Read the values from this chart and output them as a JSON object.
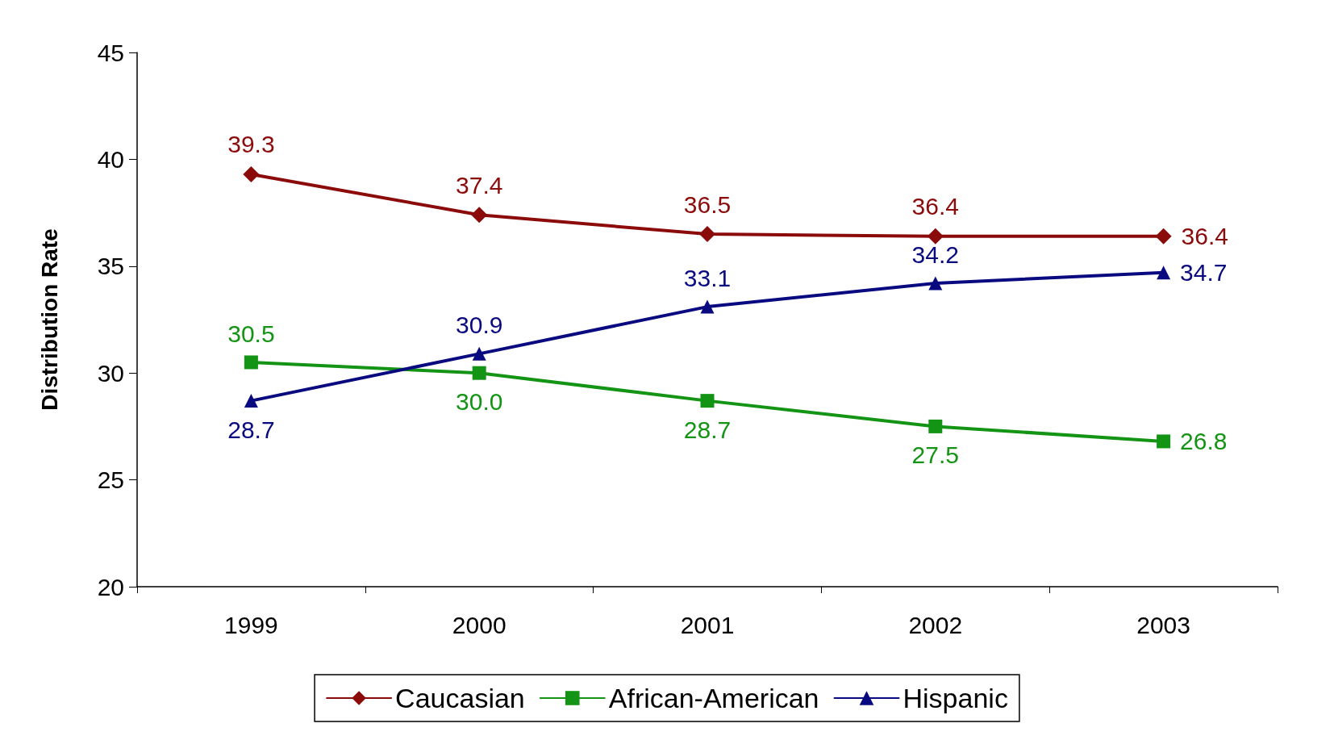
{
  "chart_data": {
    "type": "line",
    "ylabel": "Distribution Rate",
    "categories": [
      "1999",
      "2000",
      "2001",
      "2002",
      "2003"
    ],
    "series": [
      {
        "name": "Caucasian",
        "color": "#8b0a0a",
        "marker": "diamond",
        "values": [
          39.3,
          37.4,
          36.5,
          36.4,
          36.4
        ]
      },
      {
        "name": "African-American",
        "color": "#149414",
        "marker": "square",
        "values": [
          30.5,
          30.0,
          28.7,
          27.5,
          26.8
        ],
        "value_labels": [
          "30.5",
          "30.0",
          "28.7",
          "27.5",
          "26.8"
        ]
      },
      {
        "name": "Hispanic",
        "color": "#0a0a80",
        "marker": "triangle",
        "values": [
          28.7,
          30.9,
          33.1,
          34.2,
          34.7
        ]
      }
    ],
    "ylim": [
      20,
      45
    ],
    "yticks": [
      20,
      25,
      30,
      35,
      40,
      45
    ],
    "grid": false,
    "legend": "bottom",
    "data_labels": true,
    "line_style": "solid"
  }
}
